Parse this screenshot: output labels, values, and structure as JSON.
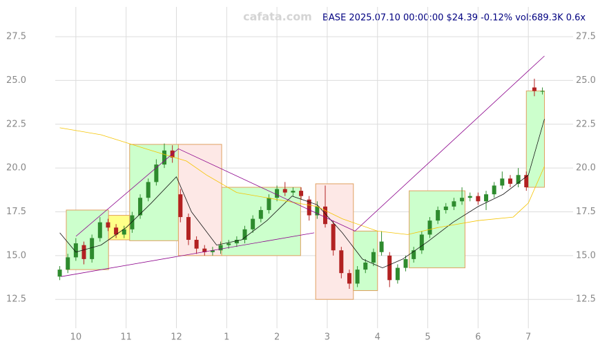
{
  "chart_data": {
    "type": "candlestick",
    "watermark": "cafata.com",
    "title": "BASE 2025.07.10 00:00:00 $24.39 -0.12% vol:689.3K 0.6x",
    "x": [
      9.68,
      9.84,
      10.0,
      10.16,
      10.32,
      10.48,
      10.64,
      10.8,
      10.96,
      11.12,
      11.28,
      11.44,
      11.6,
      11.76,
      11.92,
      12.08,
      12.24,
      12.4,
      12.56,
      12.72,
      12.88,
      13.04,
      13.2,
      13.36,
      13.52,
      13.68,
      13.84,
      14.0,
      14.16,
      14.32,
      14.48,
      14.64,
      14.8,
      14.96,
      15.12,
      15.28,
      15.44,
      15.6,
      15.76,
      15.92,
      16.08,
      16.24,
      16.4,
      16.56,
      16.72,
      16.88,
      17.04,
      17.2,
      17.36,
      17.52,
      17.68,
      17.84,
      18.0,
      18.16,
      18.32,
      18.48,
      18.64,
      18.8,
      18.96,
      19.12,
      19.28
    ],
    "open": [
      13.8,
      14.2,
      14.9,
      15.6,
      14.8,
      16.0,
      16.9,
      16.6,
      16.2,
      16.5,
      17.3,
      18.3,
      19.2,
      20.2,
      21.0,
      18.5,
      17.2,
      15.9,
      15.4,
      15.2,
      15.3,
      15.6,
      15.7,
      15.9,
      16.5,
      17.1,
      17.6,
      18.3,
      18.8,
      18.6,
      18.7,
      18.2,
      17.3,
      17.8,
      16.8,
      15.3,
      14.0,
      13.4,
      14.2,
      14.6,
      15.2,
      15.0,
      13.6,
      14.3,
      14.8,
      15.3,
      16.2,
      17.0,
      17.6,
      17.8,
      18.1,
      18.3,
      18.4,
      18.1,
      18.5,
      19.0,
      19.4,
      19.1,
      19.6,
      24.6,
      24.4
    ],
    "high": [
      14.4,
      15.1,
      16.0,
      15.8,
      16.2,
      17.2,
      17.1,
      16.8,
      16.7,
      17.5,
      18.5,
      19.4,
      20.5,
      21.4,
      21.3,
      18.8,
      17.4,
      16.1,
      15.6,
      15.5,
      15.8,
      15.9,
      16.1,
      16.7,
      17.3,
      17.8,
      18.5,
      19.0,
      19.2,
      18.9,
      18.9,
      18.4,
      18.1,
      19.0,
      17.0,
      15.5,
      14.2,
      14.4,
      14.8,
      15.4,
      16.4,
      15.2,
      14.5,
      15.0,
      15.5,
      16.4,
      17.2,
      17.8,
      18.0,
      18.3,
      18.9,
      18.6,
      18.6,
      18.7,
      19.2,
      19.8,
      19.6,
      20.0,
      19.8,
      25.1,
      24.6
    ],
    "low": [
      13.6,
      14.0,
      14.7,
      14.5,
      14.6,
      15.8,
      16.4,
      16.0,
      16.0,
      16.3,
      17.1,
      18.1,
      19.0,
      20.0,
      20.3,
      16.9,
      15.6,
      15.1,
      15.0,
      15.0,
      15.1,
      15.4,
      15.5,
      15.7,
      16.3,
      16.9,
      17.4,
      18.1,
      18.4,
      18.4,
      18.2,
      17.0,
      17.1,
      16.6,
      15.0,
      13.7,
      13.1,
      13.2,
      14.0,
      14.4,
      15.0,
      13.2,
      13.4,
      14.1,
      14.6,
      15.1,
      16.0,
      16.8,
      17.4,
      17.6,
      17.9,
      18.1,
      17.9,
      17.6,
      18.3,
      18.8,
      18.9,
      18.9,
      18.7,
      24.1,
      24.2
    ],
    "close": [
      14.2,
      14.9,
      15.7,
      14.8,
      16.0,
      16.9,
      16.6,
      16.2,
      16.5,
      17.3,
      18.3,
      19.2,
      20.2,
      21.0,
      20.6,
      17.2,
      15.9,
      15.4,
      15.2,
      15.3,
      15.6,
      15.7,
      15.9,
      16.5,
      17.1,
      17.6,
      18.3,
      18.8,
      18.6,
      18.7,
      18.4,
      17.3,
      17.8,
      16.8,
      15.3,
      14.0,
      13.4,
      14.2,
      14.6,
      15.2,
      15.8,
      13.6,
      14.3,
      14.8,
      15.3,
      16.2,
      17.0,
      17.6,
      17.8,
      18.1,
      18.3,
      18.4,
      18.1,
      18.5,
      19.0,
      19.4,
      19.1,
      19.6,
      18.9,
      24.4,
      24.4
    ],
    "up_color": "#2e8b2e",
    "down_color": "#b22222",
    "boxes": [
      {
        "x0": 9.81,
        "x1": 10.65,
        "low": 14.2,
        "high": 17.6,
        "color": "#ccffcc"
      },
      {
        "x0": 10.65,
        "x1": 11.07,
        "low": 15.9,
        "high": 17.3,
        "color": "#ffff88"
      },
      {
        "x0": 11.07,
        "x1": 12.04,
        "low": 15.85,
        "high": 21.35,
        "color": "#ccffcc"
      },
      {
        "x0": 12.04,
        "x1": 12.9,
        "low": 15.0,
        "high": 21.35,
        "color": "#fde8e6"
      },
      {
        "x0": 12.9,
        "x1": 14.47,
        "low": 15.0,
        "high": 18.9,
        "color": "#ccffcc"
      },
      {
        "x0": 14.77,
        "x1": 15.52,
        "low": 12.5,
        "high": 19.1,
        "color": "#fde8e6"
      },
      {
        "x0": 15.52,
        "x1": 16.0,
        "low": 13.0,
        "high": 16.4,
        "color": "#ccffcc"
      },
      {
        "x0": 16.63,
        "x1": 17.74,
        "low": 14.3,
        "high": 18.7,
        "color": "#ccffcc"
      },
      {
        "x0": 18.96,
        "x1": 19.32,
        "low": 18.9,
        "high": 24.4,
        "color": "#ccffcc"
      }
    ],
    "box_border": "#e0a060",
    "lines": [
      {
        "color": "#111111",
        "x": [
          9.68,
          10.0,
          10.5,
          11.0,
          11.5,
          12.0,
          12.3,
          12.8,
          13.3,
          13.8,
          14.3,
          14.8,
          15.3,
          15.7,
          16.1,
          16.5,
          17.0,
          17.5,
          18.0,
          18.5,
          19.0,
          19.32
        ],
        "values": [
          16.3,
          15.2,
          15.6,
          16.6,
          18.0,
          19.5,
          17.5,
          15.6,
          15.9,
          17.0,
          18.4,
          17.9,
          16.3,
          14.8,
          14.3,
          14.8,
          15.8,
          16.9,
          17.8,
          18.5,
          19.6,
          22.8
        ]
      },
      {
        "color": "#f5c400",
        "x": [
          9.68,
          10.5,
          11.5,
          12.2,
          12.6,
          13.2,
          14.0,
          14.8,
          15.3,
          16.0,
          16.6,
          17.2,
          18.0,
          18.7,
          19.0,
          19.32
        ],
        "values": [
          22.3,
          21.9,
          21.0,
          20.4,
          19.6,
          18.6,
          18.2,
          17.8,
          17.1,
          16.4,
          16.2,
          16.6,
          17.0,
          17.2,
          18.0,
          20.1
        ]
      },
      {
        "color": "#8b008b",
        "x": [
          9.71,
          14.74
        ],
        "values": [
          13.8,
          16.3
        ]
      },
      {
        "color": "#8b008b",
        "x": [
          10.0,
          12.04,
          15.55,
          19.32
        ],
        "values": [
          16.1,
          21.1,
          16.4,
          26.4
        ]
      }
    ],
    "xlim": [
      9.59,
      19.89
    ],
    "xticks": [
      10,
      11,
      12,
      {
        "value": 13,
        "label": "1"
      },
      {
        "value": 14,
        "label": "2"
      },
      {
        "value": 15,
        "label": "3"
      },
      {
        "value": 16,
        "label": "4"
      },
      {
        "value": 17,
        "label": "5"
      },
      {
        "value": 18,
        "label": "6"
      },
      {
        "value": 19,
        "label": "7"
      }
    ],
    "ylim": [
      10.85,
      29.2
    ],
    "yticks": [
      12.5,
      {
        "value": 15,
        "label": "15.0"
      },
      17.5,
      {
        "value": 20,
        "label": "20.0"
      },
      22.5,
      {
        "value": 25,
        "label": "25.0"
      },
      27.5
    ],
    "grid": true
  }
}
